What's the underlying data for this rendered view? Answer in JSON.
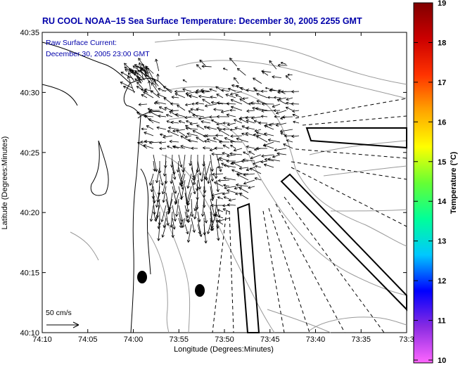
{
  "title": "RU COOL  NOAA–15  Sea Surface Temperature:  December 30, 2005 2255 GMT",
  "annotation": {
    "line1": "Raw Surface Current:",
    "line2": "December 30, 2005 23:00 GMT"
  },
  "scale_label": "50 cm/s",
  "map": {
    "x_axis_label": "Longitude (Degrees:Minutes)",
    "y_axis_label": "Latitude (Degrees:Minutes)",
    "x_ticks": [
      "74:10",
      "74:05",
      "74:00",
      "73:55",
      "73:50",
      "73:45",
      "73:40",
      "73:35",
      "73:3"
    ],
    "y_ticks": [
      "40:35",
      "40:30",
      "40:25",
      "40:20",
      "40:15",
      "40:10"
    ]
  },
  "colorbar": {
    "label": "Temperature (°C)",
    "ticks": [
      "19",
      "18",
      "17",
      "16",
      "15",
      "14",
      "13",
      "12",
      "11",
      "10"
    ],
    "colors": [
      "#ff66ff",
      "#8a2be2",
      "#0000ff",
      "#00c8ff",
      "#00ff99",
      "#66ff33",
      "#ffff00",
      "#ffa500",
      "#ff3300",
      "#cc0000",
      "#800000"
    ]
  },
  "vector_field": {
    "description_hidden": false
  }
}
